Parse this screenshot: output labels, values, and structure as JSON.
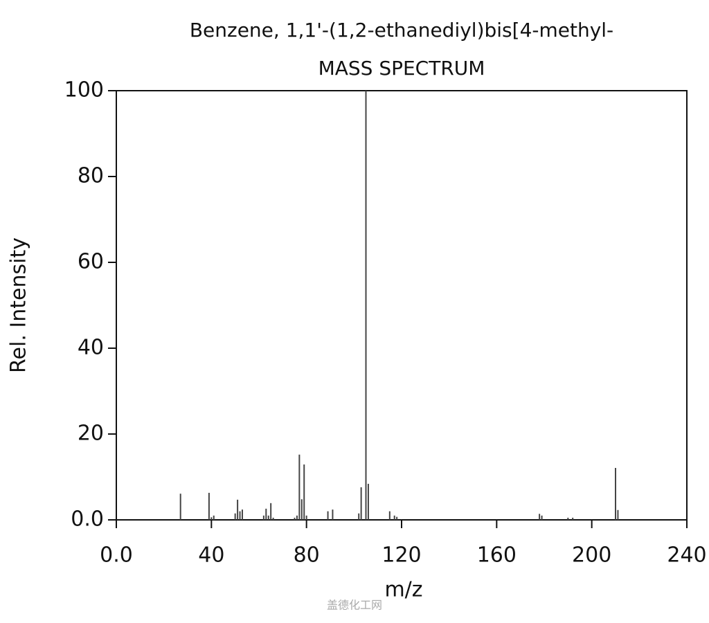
{
  "chart_data": {
    "type": "stem",
    "title": "Benzene, 1,1'-(1,2-ethanediyl)bis[4-methyl-",
    "subtitle": "MASS SPECTRUM",
    "xlabel": "m/z",
    "ylabel": "Rel. Intensity",
    "watermark": "盖德化工网",
    "color": "#444444",
    "x": [
      27,
      39,
      40,
      41,
      50,
      51,
      52,
      53,
      62,
      63,
      64,
      65,
      66,
      75,
      76,
      77,
      78,
      79,
      80,
      89,
      91,
      102,
      103,
      105,
      106,
      115,
      117,
      118,
      178,
      179,
      190,
      192,
      210,
      211
    ],
    "values": [
      6.1,
      6.3,
      0.6,
      1,
      1.5,
      4.7,
      2,
      2.4,
      1,
      2.6,
      1,
      3.9,
      0.5,
      0.5,
      1,
      15.2,
      4.8,
      12.9,
      1,
      2,
      2.4,
      1.5,
      7.6,
      100,
      8.4,
      2,
      1,
      0.7,
      1.4,
      1,
      0.5,
      0.5,
      12.1,
      2.3
    ],
    "xlim": [
      0,
      240
    ],
    "xticks": [
      {
        "value": 0,
        "label": "0.0"
      },
      40,
      80,
      120,
      160,
      200,
      240
    ],
    "ylim": [
      0,
      100
    ],
    "yticks": [
      {
        "value": 0,
        "label": "0.0"
      },
      20,
      40,
      60,
      80,
      100
    ]
  }
}
